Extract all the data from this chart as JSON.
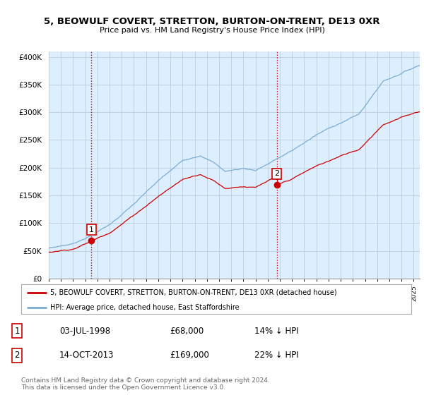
{
  "title": "5, BEOWULF COVERT, STRETTON, BURTON-ON-TRENT, DE13 0XR",
  "subtitle": "Price paid vs. HM Land Registry's House Price Index (HPI)",
  "legend_line1": "5, BEOWULF COVERT, STRETTON, BURTON-ON-TRENT, DE13 0XR (detached house)",
  "legend_line2": "HPI: Average price, detached house, East Staffordshire",
  "transaction1_label": "1",
  "transaction1_date": "03-JUL-1998",
  "transaction1_price": "£68,000",
  "transaction1_hpi": "14% ↓ HPI",
  "transaction2_label": "2",
  "transaction2_date": "14-OCT-2013",
  "transaction2_price": "£169,000",
  "transaction2_hpi": "22% ↓ HPI",
  "footer": "Contains HM Land Registry data © Crown copyright and database right 2024.\nThis data is licensed under the Open Government Licence v3.0.",
  "line_color_red": "#cc0000",
  "line_color_blue": "#7aadd4",
  "marker_color_red": "#cc0000",
  "vline_color": "#cc0000",
  "background_color": "#ffffff",
  "chart_bg_color": "#ddeeff",
  "grid_color": "#bbccdd",
  "ylim": [
    0,
    410000
  ],
  "xlim_start": 1995.0,
  "xlim_end": 2025.5,
  "t1_x": 1998.5,
  "t1_y": 68000,
  "t2_x": 2013.75,
  "t2_y": 169000
}
